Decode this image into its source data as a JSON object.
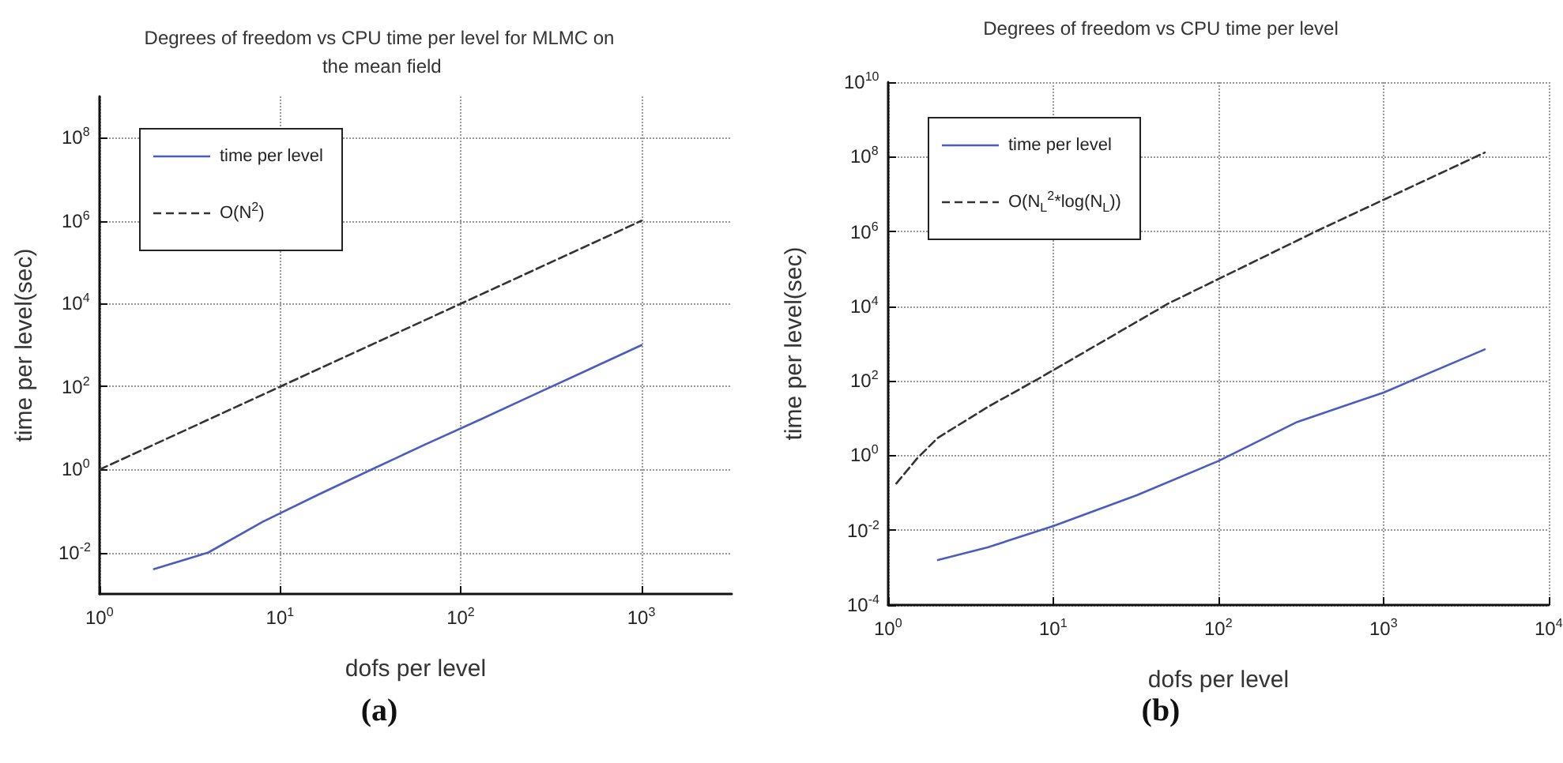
{
  "chart_data": [
    {
      "type": "line",
      "title": "Degrees of freedom vs CPU time per level for MLMC on the mean field",
      "xlabel": "dofs per level",
      "ylabel": "time per level(sec)",
      "log": "xy",
      "grid": true,
      "legend": "top left",
      "annotations": [
        "(a)"
      ],
      "xlim": [
        1,
        3162
      ],
      "xticks": [
        {
          "value": 1,
          "label": "10$^{0}$"
        },
        {
          "value": 10,
          "label": "10$^{1}$"
        },
        {
          "value": 100,
          "label": "10$^{2}$"
        },
        {
          "value": 1000,
          "label": "10$^{3}$"
        }
      ],
      "ylim": [
        0.001,
        1000000000
      ],
      "yticks": [
        {
          "value": 0.01,
          "label": "10$^{-2}$"
        },
        {
          "value": 1,
          "label": "10$^{0}$"
        },
        {
          "value": 100,
          "label": "10$^{2}$"
        },
        {
          "value": 10000,
          "label": "10$^{4}$"
        },
        {
          "value": 1000000,
          "label": "10$^{6}$"
        },
        {
          "value": 100000000,
          "label": "10$^{8}$"
        }
      ],
      "series": [
        {
          "name": "time per level",
          "color": "#4a5cc0",
          "line_style": "solid",
          "x": [
            2,
            4,
            8,
            16,
            32,
            64,
            128,
            256,
            512,
            1000
          ],
          "values": [
            0.004,
            0.01,
            0.055,
            0.24,
            1.0,
            4.1,
            16,
            65,
            260,
            1000
          ]
        },
        {
          "name": "O(N$^{2}$)",
          "color": "#333333",
          "line_style": "dashed",
          "x": [
            1,
            10,
            100,
            1000
          ],
          "values": [
            1,
            100,
            10000,
            1000000
          ]
        }
      ]
    },
    {
      "type": "line",
      "title": "Degrees of freedom vs CPU time per level",
      "xlabel": "dofs per level",
      "ylabel": "time per level(sec)",
      "log": "xy",
      "grid": true,
      "legend": "top left",
      "annotations": [
        "(b)"
      ],
      "xlim": [
        1,
        10000
      ],
      "xticks": [
        {
          "value": 1,
          "label": "10$^{0}$"
        },
        {
          "value": 10,
          "label": "10$^{1}$"
        },
        {
          "value": 100,
          "label": "10$^{2}$"
        },
        {
          "value": 1000,
          "label": "10$^{3}$"
        },
        {
          "value": 10000,
          "label": "10$^{4}$"
        }
      ],
      "ylim": [
        0.0001,
        10000000000
      ],
      "yticks": [
        {
          "value": 0.0001,
          "label": "10$^{-4}$"
        },
        {
          "value": 0.01,
          "label": "10$^{-2}$"
        },
        {
          "value": 1,
          "label": "10$^{0}$"
        },
        {
          "value": 100,
          "label": "10$^{2}$"
        },
        {
          "value": 10000,
          "label": "10$^{4}$"
        },
        {
          "value": 1000000,
          "label": "10$^{6}$"
        },
        {
          "value": 100000000,
          "label": "10$^{8}$"
        },
        {
          "value": 10000000000,
          "label": "10$^{10}$"
        }
      ],
      "series": [
        {
          "name": "time per level",
          "color": "#4a5cc0",
          "line_style": "solid",
          "x": [
            2,
            4,
            10,
            32,
            100,
            300,
            1000,
            4096
          ],
          "values": [
            0.0016,
            0.0035,
            0.013,
            0.087,
            0.72,
            8,
            49,
            700
          ]
        },
        {
          "name": "O(N$_{L}$$^{2}$*log(N$_{L}$))",
          "color": "#333333",
          "line_style": "dashed",
          "x": [
            1.12,
            1.5,
            2,
            4,
            8,
            50,
            400,
            4096
          ],
          "values": [
            0.18,
            0.85,
            3,
            20,
            110,
            12000,
            1070000,
            130000000
          ]
        }
      ]
    }
  ]
}
